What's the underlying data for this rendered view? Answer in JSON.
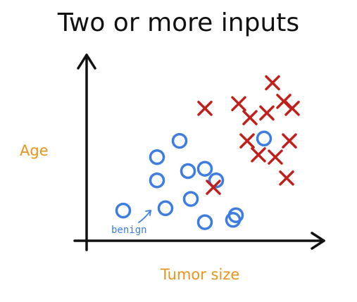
{
  "title": "Two or more inputs",
  "x_label": "Tumor size",
  "y_label": "Age",
  "annotation": "benign",
  "colors": {
    "axes": "#111111",
    "label": "#e8941a",
    "benign": "#3d7de0",
    "malignant": "#c0201c"
  },
  "chart_data": {
    "type": "scatter",
    "title": "Two or more inputs",
    "xlabel": "Tumor size",
    "ylabel": "Age",
    "grid": false,
    "series": [
      {
        "name": "benign",
        "marker": "circle",
        "color": "#3d7de0",
        "x": [
          1.3,
          2.5,
          3.3,
          2.5,
          3.6,
          4.2,
          3.7,
          2.8,
          4.6,
          5.3,
          4.2,
          5.2,
          6.3
        ],
        "y": [
          1.3,
          3.6,
          4.3,
          2.6,
          3.0,
          3.1,
          1.8,
          1.4,
          2.6,
          1.1,
          0.8,
          0.9,
          4.4
        ]
      },
      {
        "name": "malignant",
        "marker": "x",
        "color": "#c0201c",
        "x": [
          4.2,
          5.8,
          5.4,
          5.7,
          6.6,
          6.4,
          7.0,
          7.3,
          7.2,
          6.1,
          6.7,
          7.1,
          4.5
        ],
        "y": [
          5.7,
          5.3,
          5.9,
          4.3,
          6.8,
          5.5,
          6.0,
          5.7,
          4.3,
          3.7,
          3.6,
          2.7,
          2.3
        ]
      }
    ]
  }
}
